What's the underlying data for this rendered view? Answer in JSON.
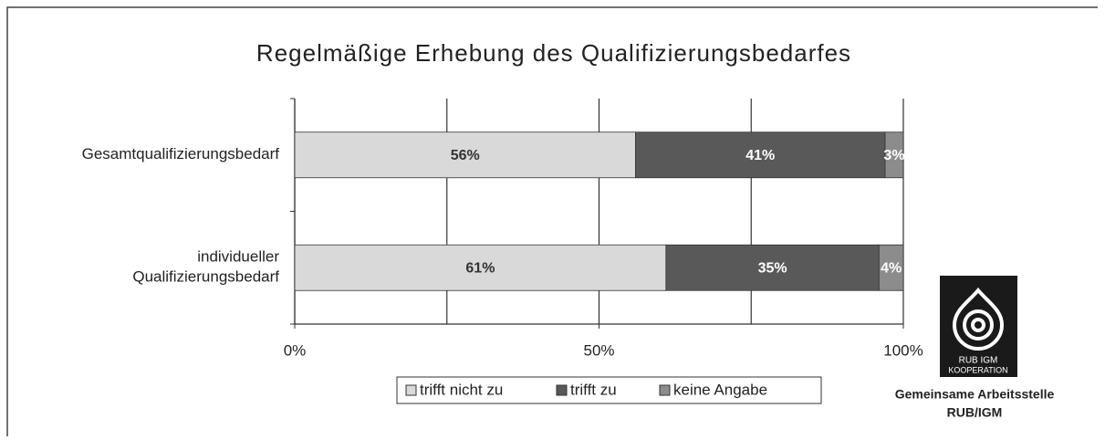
{
  "chart_data": {
    "type": "stacked-barh",
    "title": "Regelmäßige Erhebung des Qualifizierungsbedarfes",
    "categories": [
      "Gesamtqualifizierungsbedarf",
      "individueller\nQualifizierungsbedarf"
    ],
    "series": [
      {
        "name": "trifft nicht zu",
        "color": "#d9d9d9",
        "values": [
          56,
          61
        ],
        "value_labels": [
          "56%",
          "61%"
        ]
      },
      {
        "name": "trifft zu",
        "color": "#595959",
        "values": [
          41,
          35
        ],
        "value_labels": [
          "41%",
          "35%"
        ]
      },
      {
        "name": "keine Angabe",
        "color": "#8c8c8c",
        "values": [
          3,
          4
        ],
        "value_labels": [
          "3%",
          "4%"
        ]
      }
    ],
    "xlim": [
      0,
      100
    ],
    "xticks": [
      {
        "value": 0,
        "label": "0%"
      },
      {
        "value": 50,
        "label": "50%"
      },
      {
        "value": 100,
        "label": "100%"
      }
    ],
    "minor_xticks": [
      25,
      75
    ],
    "grid": true,
    "legend": "bottom"
  },
  "logo": {
    "lines": [
      "RUB  IGM",
      "KOOPERATION"
    ],
    "caption": [
      "Gemeinsame Arbeitsstelle",
      "RUB/IGM"
    ]
  }
}
